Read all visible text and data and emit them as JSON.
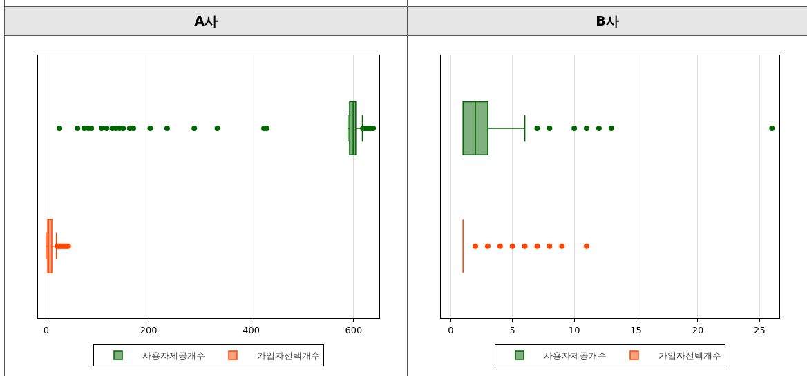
{
  "chart_data": [
    {
      "type": "box",
      "title": "A사",
      "orientation": "horizontal",
      "categories": [
        null,
        null
      ],
      "xlim": [
        -16,
        650
      ],
      "xticks": [
        0,
        200,
        400,
        600
      ],
      "grid": "x",
      "legend": "bottom",
      "tick_labels": "x",
      "marker": "circle",
      "series": [
        {
          "name": "사용자제공개수",
          "color": "#006400",
          "boxes": [
            {
              "low": 589,
              "q1": 592,
              "median": 599,
              "q3": 604,
              "high": 617,
              "outliers": [
                26,
                61,
                74,
                82,
                88,
                108,
                118,
                129,
                136,
                143,
                150,
                163,
                170,
                203,
                236,
                289,
                334,
                425,
                430,
                618,
                622,
                626,
                630,
                634,
                638
              ]
            },
            null
          ]
        },
        {
          "name": "가입자선택개수",
          "color": "#ff4500",
          "boxes": [
            null,
            {
              "low": 0,
              "q1": 3,
              "median": 4,
              "q3": 11,
              "high": 20,
              "outliers": [
                22,
                25,
                28,
                31,
                34,
                37,
                40,
                43
              ]
            }
          ]
        }
      ]
    },
    {
      "type": "box",
      "title": "B사",
      "orientation": "horizontal",
      "categories": [
        null,
        null
      ],
      "xlim": [
        -0.8,
        26.6
      ],
      "xticks": [
        0,
        5,
        10,
        15,
        20,
        25
      ],
      "grid": "x",
      "legend": "bottom",
      "tick_labels": "x",
      "marker": "circle",
      "series": [
        {
          "name": "사용자제공개수",
          "color": "#006400",
          "boxes": [
            {
              "low": 1,
              "q1": 1,
              "median": 2,
              "q3": 3,
              "high": 6,
              "outliers": [
                7,
                8,
                10,
                11,
                12,
                13,
                26
              ]
            },
            null
          ]
        },
        {
          "name": "가입자선택개수",
          "color": "#ff4500",
          "boxes": [
            null,
            {
              "low": 1,
              "q1": 1,
              "median": 1,
              "q3": 1,
              "high": 1,
              "outliers": [
                2,
                3,
                4,
                5,
                6,
                7,
                8,
                9,
                11
              ]
            }
          ]
        }
      ]
    }
  ]
}
